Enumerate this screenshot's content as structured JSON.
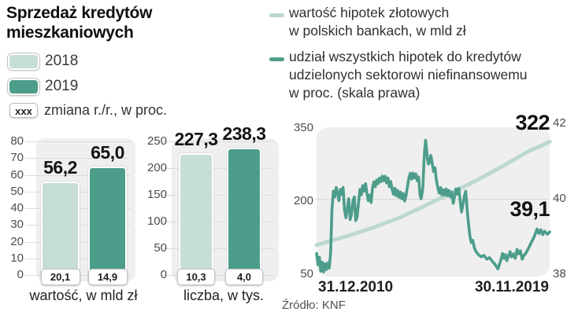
{
  "title": "Sprzedaż kredytów\nmieszkaniowych",
  "legend": {
    "items": [
      {
        "label": "2018",
        "color": "#c7ded5"
      },
      {
        "label": "2019",
        "color": "#4d9d8b"
      }
    ],
    "change_box": "xxx",
    "change_label": "zmiana r./r., w proc."
  },
  "source": "Źródło: KNF",
  "chart_data": [
    {
      "type": "bar",
      "title": "wartość, w mld zł",
      "categories": [
        "2018",
        "2019"
      ],
      "values": [
        56.2,
        65.0
      ],
      "value_labels": [
        "56,2",
        "65,0"
      ],
      "change_labels": [
        "20,1",
        "14,9"
      ],
      "ylim": [
        0,
        80
      ],
      "yticks": [
        80,
        70,
        60,
        50,
        40,
        30,
        20,
        10,
        0
      ]
    },
    {
      "type": "bar",
      "title": "liczba, w tys.",
      "categories": [
        "2018",
        "2019"
      ],
      "values": [
        227.3,
        238.3
      ],
      "value_labels": [
        "227,3",
        "238,3"
      ],
      "change_labels": [
        "10,3",
        "4,0"
      ],
      "ylim": [
        0,
        250
      ],
      "yticks": [
        250,
        200,
        150,
        100,
        50,
        0
      ]
    },
    {
      "type": "line",
      "x_labels": [
        "31.12.2010",
        "30.11.2019"
      ],
      "left_axis": {
        "range": [
          50,
          350
        ],
        "ticks": [
          350,
          200,
          50
        ]
      },
      "right_axis": {
        "range": [
          38,
          42
        ],
        "ticks": [
          42,
          40,
          38
        ]
      },
      "annotations": [
        {
          "text": "322"
        },
        {
          "text": "39,1"
        }
      ],
      "legend": [
        {
          "label": "wartość hipotek złotowych\nw polskich bankach, w mld zł",
          "color": "#bdd8ce"
        },
        {
          "label": "udział wszystkich hipotek do kredytów\nudzielonych sektorowi niefinansowemu\nw proc. (skala prawa)",
          "color": "#4d9d8b"
        }
      ],
      "series": [
        {
          "name": "wartość hipotek złotowych w polskich bankach, w mld zł",
          "axis": "left",
          "color": "#bdd8ce",
          "width": 5,
          "points": [
            [
              0,
              110
            ],
            [
              0.05,
              117
            ],
            [
              0.1,
              124
            ],
            [
              0.15,
              131
            ],
            [
              0.2,
              139
            ],
            [
              0.25,
              147
            ],
            [
              0.3,
              156
            ],
            [
              0.35,
              165
            ],
            [
              0.4,
              176
            ],
            [
              0.45,
              187
            ],
            [
              0.5,
              199
            ],
            [
              0.55,
              210
            ],
            [
              0.6,
              222
            ],
            [
              0.65,
              234
            ],
            [
              0.7,
              246
            ],
            [
              0.75,
              259
            ],
            [
              0.8,
              272
            ],
            [
              0.85,
              286
            ],
            [
              0.9,
              300
            ],
            [
              0.95,
              311
            ],
            [
              1,
              322
            ]
          ]
        },
        {
          "name": "udział wszystkich hipotek do kredytów udzielonych sektorowi niefinansowemu, w proc.",
          "axis": "right",
          "color": "#4d9d8b",
          "width": 3.6,
          "points": [
            [
              0,
              38.55
            ],
            [
              0.006,
              38.25
            ],
            [
              0.012,
              38.45
            ],
            [
              0.018,
              38.08
            ],
            [
              0.024,
              38.32
            ],
            [
              0.03,
              38.06
            ],
            [
              0.036,
              38.28
            ],
            [
              0.042,
              38.12
            ],
            [
              0.048,
              38.3
            ],
            [
              0.054,
              38.16
            ],
            [
              0.06,
              38.55
            ],
            [
              0.066,
              39.7
            ],
            [
              0.072,
              40.2
            ],
            [
              0.078,
              40.05
            ],
            [
              0.084,
              40.3
            ],
            [
              0.09,
              40.15
            ],
            [
              0.096,
              39.95
            ],
            [
              0.102,
              40.25
            ],
            [
              0.108,
              40.12
            ],
            [
              0.114,
              40.3
            ],
            [
              0.12,
              39.7
            ],
            [
              0.126,
              39.5
            ],
            [
              0.132,
              39.75
            ],
            [
              0.138,
              40.0
            ],
            [
              0.144,
              39.45
            ],
            [
              0.15,
              39.6
            ],
            [
              0.156,
              39.95
            ],
            [
              0.162,
              40.05
            ],
            [
              0.168,
              39.42
            ],
            [
              0.174,
              39.52
            ],
            [
              0.18,
              39.9
            ],
            [
              0.186,
              40.25
            ],
            [
              0.192,
              40.1
            ],
            [
              0.198,
              40.35
            ],
            [
              0.204,
              40.2
            ],
            [
              0.21,
              40.4
            ],
            [
              0.216,
              40.15
            ],
            [
              0.222,
              39.95
            ],
            [
              0.228,
              40.1
            ],
            [
              0.234,
              39.9
            ],
            [
              0.24,
              40.28
            ],
            [
              0.246,
              40.45
            ],
            [
              0.252,
              40.32
            ],
            [
              0.258,
              40.5
            ],
            [
              0.264,
              40.4
            ],
            [
              0.27,
              40.55
            ],
            [
              0.276,
              40.45
            ],
            [
              0.282,
              40.6
            ],
            [
              0.288,
              40.48
            ],
            [
              0.294,
              40.6
            ],
            [
              0.3,
              40.42
            ],
            [
              0.306,
              40.55
            ],
            [
              0.312,
              40.32
            ],
            [
              0.318,
              40.46
            ],
            [
              0.324,
              40.25
            ],
            [
              0.33,
              40.12
            ],
            [
              0.336,
              40.28
            ],
            [
              0.342,
              40.08
            ],
            [
              0.348,
              40.22
            ],
            [
              0.354,
              40.04
            ],
            [
              0.36,
              40.18
            ],
            [
              0.366,
              40.0
            ],
            [
              0.372,
              40.14
            ],
            [
              0.378,
              39.94
            ],
            [
              0.384,
              40.1
            ],
            [
              0.39,
              40.32
            ],
            [
              0.396,
              40.55
            ],
            [
              0.402,
              40.68
            ],
            [
              0.408,
              40.52
            ],
            [
              0.414,
              40.68
            ],
            [
              0.42,
              40.55
            ],
            [
              0.426,
              40.66
            ],
            [
              0.432,
              40.48
            ],
            [
              0.438,
              40.58
            ],
            [
              0.444,
              40.1
            ],
            [
              0.448,
              40.0
            ],
            [
              0.452,
              40.12
            ],
            [
              0.456,
              40.3
            ],
            [
              0.46,
              40.9
            ],
            [
              0.464,
              41.3
            ],
            [
              0.468,
              41.55
            ],
            [
              0.472,
              41.3
            ],
            [
              0.476,
              41.05
            ],
            [
              0.48,
              40.92
            ],
            [
              0.486,
              41.0
            ],
            [
              0.49,
              41.15
            ],
            [
              0.496,
              40.95
            ],
            [
              0.502,
              40.72
            ],
            [
              0.508,
              40.82
            ],
            [
              0.514,
              40.5
            ],
            [
              0.52,
              40.3
            ],
            [
              0.526,
              40.15
            ],
            [
              0.532,
              40.3
            ],
            [
              0.538,
              40.1
            ],
            [
              0.544,
              40.24
            ],
            [
              0.55,
              40.1
            ],
            [
              0.556,
              40.26
            ],
            [
              0.562,
              40.08
            ],
            [
              0.568,
              40.22
            ],
            [
              0.574,
              40.05
            ],
            [
              0.58,
              40.18
            ],
            [
              0.586,
              39.88
            ],
            [
              0.592,
              40.05
            ],
            [
              0.598,
              40.26
            ],
            [
              0.604,
              40.12
            ],
            [
              0.61,
              40.28
            ],
            [
              0.616,
              39.95
            ],
            [
              0.622,
              39.65
            ],
            [
              0.628,
              39.85
            ],
            [
              0.634,
              40.08
            ],
            [
              0.64,
              40.2
            ],
            [
              0.646,
              39.72
            ],
            [
              0.652,
              39.32
            ],
            [
              0.658,
              39.0
            ],
            [
              0.664,
              38.84
            ],
            [
              0.67,
              38.9
            ],
            [
              0.676,
              38.72
            ],
            [
              0.682,
              38.62
            ],
            [
              0.694,
              38.52
            ],
            [
              0.706,
              38.46
            ],
            [
              0.718,
              38.5
            ],
            [
              0.73,
              38.4
            ],
            [
              0.742,
              38.44
            ],
            [
              0.754,
              38.34
            ],
            [
              0.766,
              38.26
            ],
            [
              0.778,
              38.14
            ],
            [
              0.79,
              38.36
            ],
            [
              0.798,
              38.55
            ],
            [
              0.804,
              38.42
            ],
            [
              0.81,
              38.52
            ],
            [
              0.816,
              38.36
            ],
            [
              0.822,
              38.46
            ],
            [
              0.83,
              38.6
            ],
            [
              0.836,
              38.46
            ],
            [
              0.844,
              38.54
            ],
            [
              0.852,
              38.42
            ],
            [
              0.86,
              38.66
            ],
            [
              0.866,
              38.54
            ],
            [
              0.874,
              38.62
            ],
            [
              0.882,
              38.4
            ],
            [
              0.89,
              38.5
            ],
            [
              0.898,
              38.56
            ],
            [
              0.91,
              38.7
            ],
            [
              0.922,
              38.85
            ],
            [
              0.934,
              39.0
            ],
            [
              0.946,
              39.2
            ],
            [
              0.954,
              39.08
            ],
            [
              0.962,
              39.18
            ],
            [
              0.97,
              39.05
            ],
            [
              0.978,
              39.14
            ],
            [
              0.99,
              39.06
            ],
            [
              1,
              39.12
            ]
          ]
        }
      ]
    }
  ]
}
